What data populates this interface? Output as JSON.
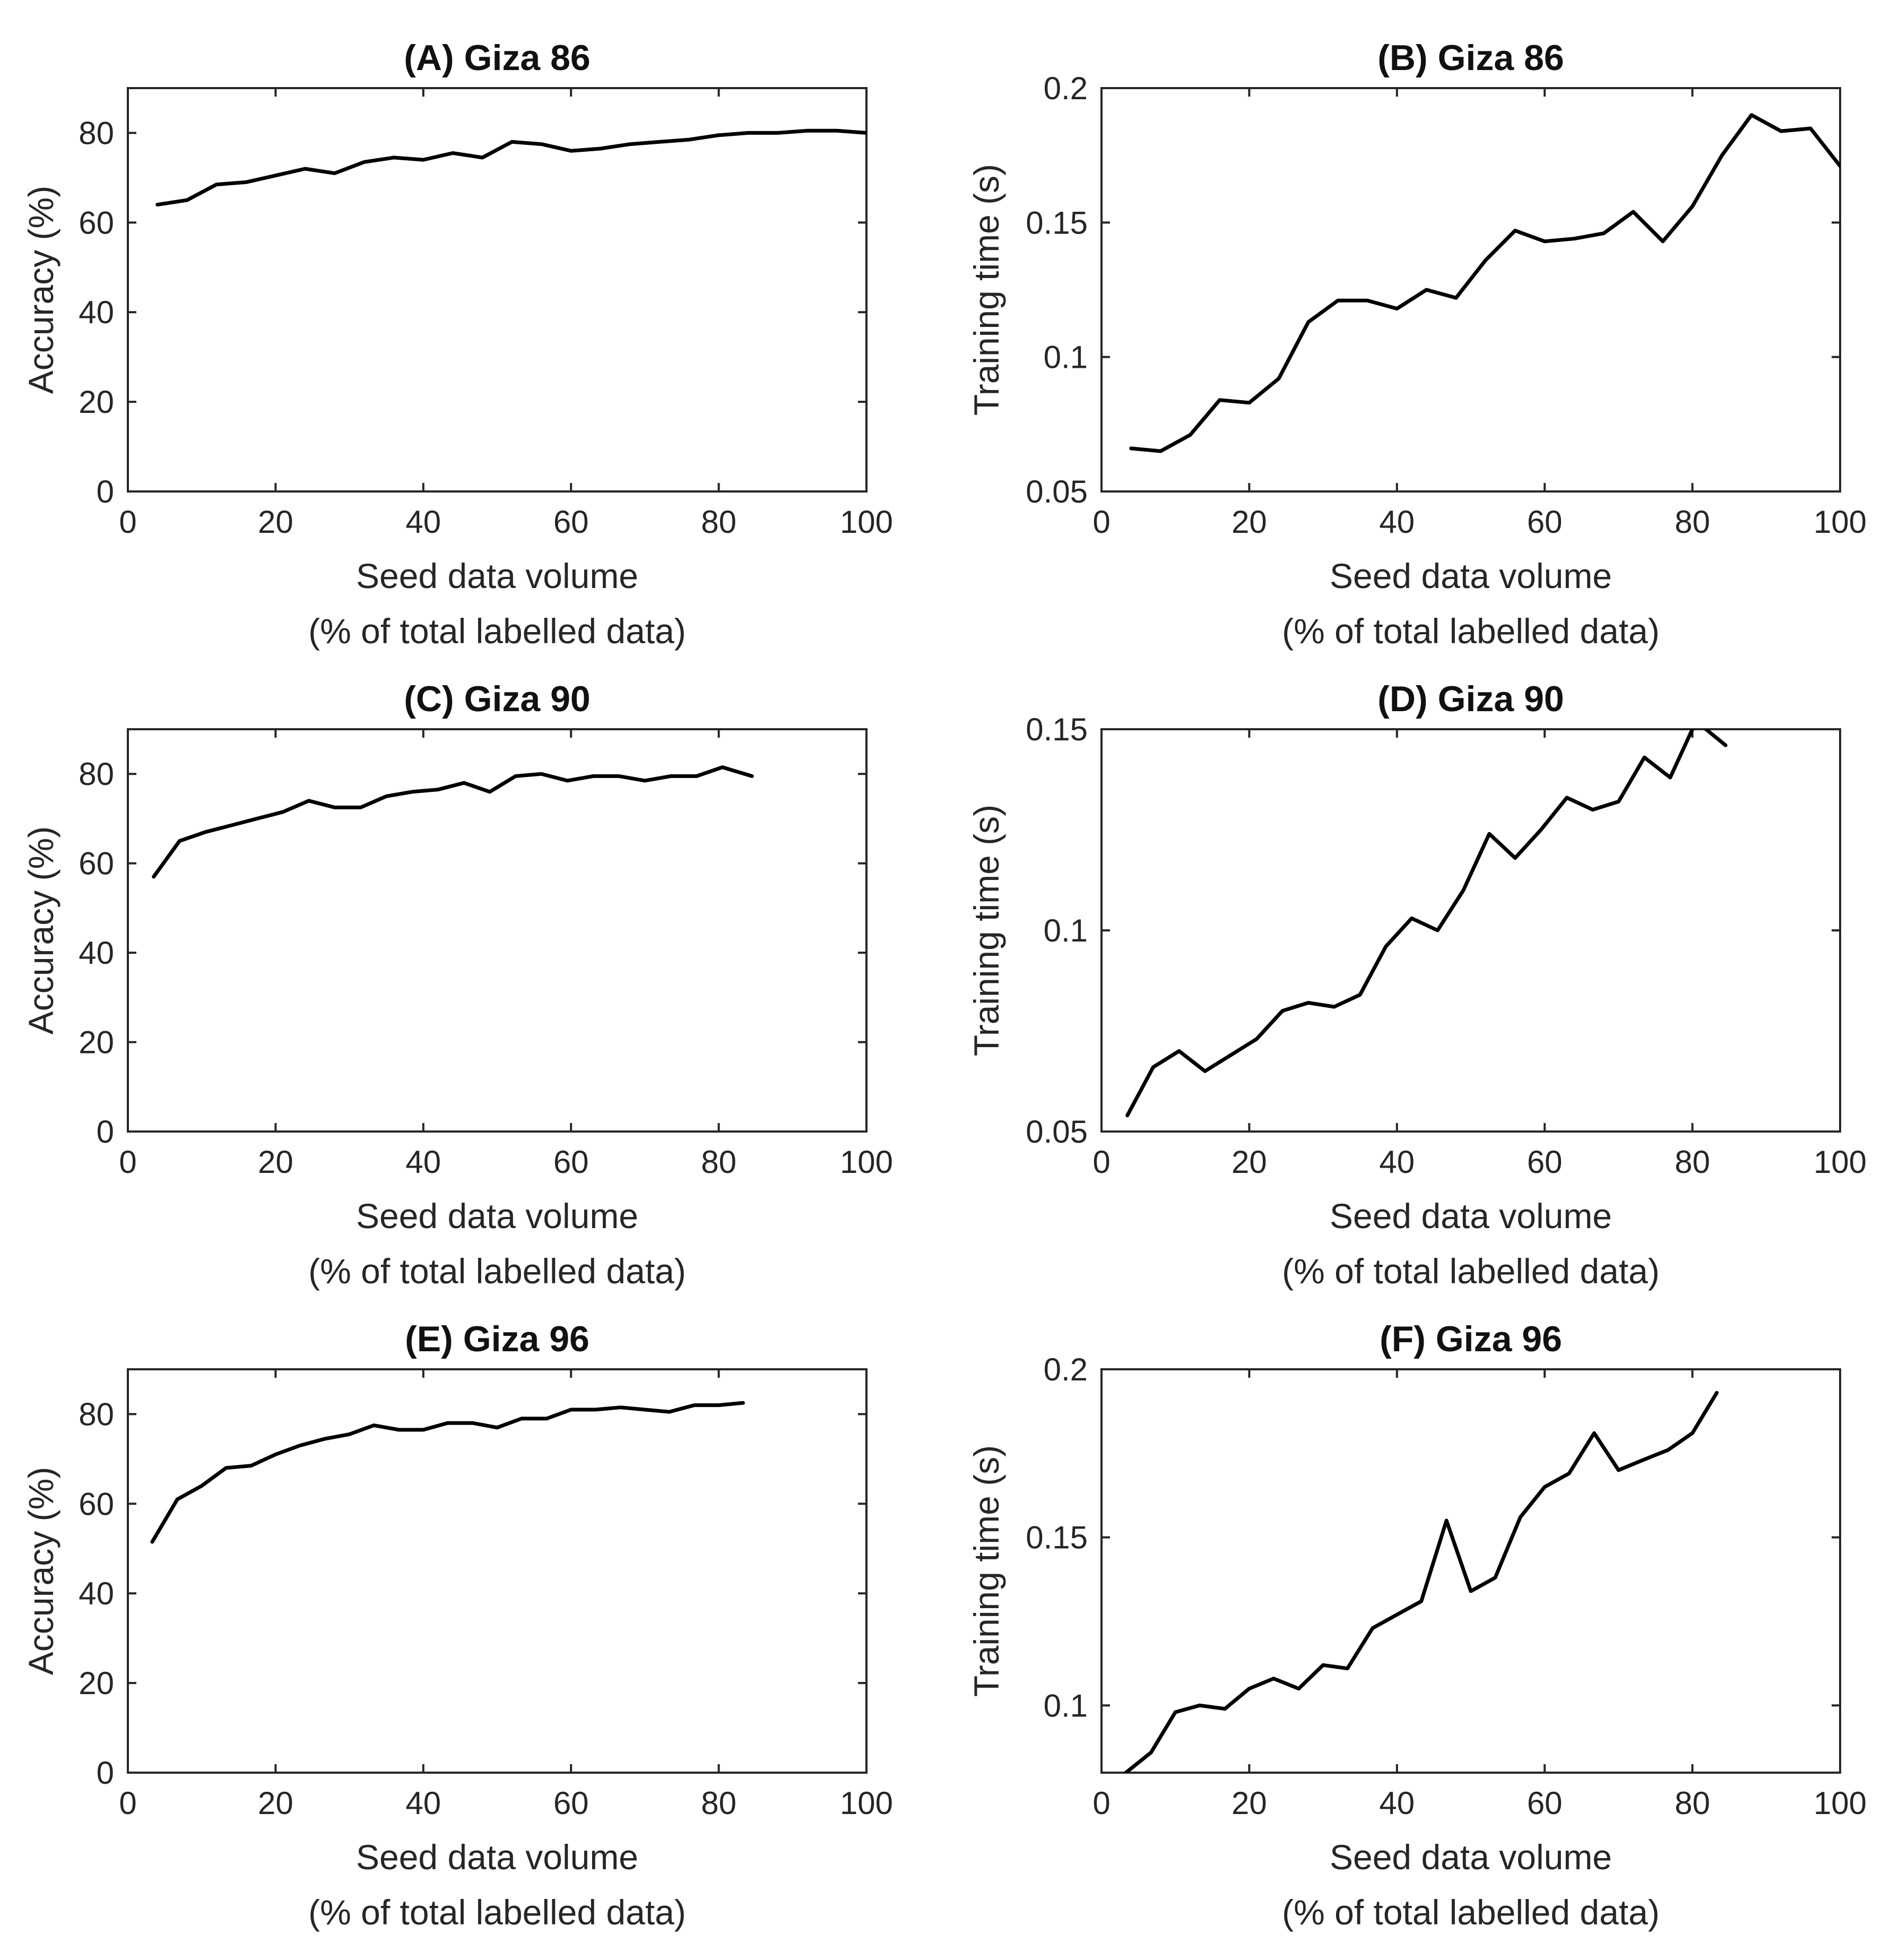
{
  "chart_data": [
    {
      "id": "A",
      "type": "line",
      "title": "(A) Giza 86",
      "xlabel": [
        "Seed data volume",
        "(% of total labelled data)"
      ],
      "ylabel": "Accuracy (%)",
      "xlim": [
        0,
        100
      ],
      "ylim": [
        0,
        90
      ],
      "xticks": [
        0,
        20,
        40,
        60,
        80,
        100
      ],
      "yticks": [
        0,
        20,
        40,
        60,
        80
      ],
      "ytick_labels": [
        "0",
        "20",
        "40",
        "60",
        "80"
      ],
      "grid": false,
      "x": [
        4,
        8,
        12,
        16,
        20,
        24,
        28,
        32,
        36,
        40,
        44,
        48,
        52,
        56,
        60,
        64,
        68,
        72,
        76,
        80,
        84,
        88,
        92,
        96,
        100
      ],
      "y": [
        64,
        65,
        68.5,
        69,
        70.5,
        72,
        71,
        73.5,
        74.5,
        74,
        75.5,
        74.5,
        78,
        77.5,
        76,
        76.5,
        77.5,
        78,
        78.5,
        79.5,
        80,
        80,
        80.5,
        80.5,
        80
      ]
    },
    {
      "id": "B",
      "type": "line",
      "title": "(B) Giza 86",
      "xlabel": [
        "Seed data volume",
        "(% of total labelled data)"
      ],
      "ylabel": "Training time (s)",
      "xlim": [
        0,
        100
      ],
      "ylim": [
        0.05,
        0.2
      ],
      "xticks": [
        0,
        20,
        40,
        60,
        80,
        100
      ],
      "yticks": [
        0.05,
        0.1,
        0.15,
        0.2
      ],
      "ytick_labels": [
        "0.05",
        "0.1",
        "0.15",
        "0.2"
      ],
      "grid": false,
      "x": [
        4,
        8,
        12,
        16,
        20,
        24,
        28,
        32,
        36,
        40,
        44,
        48,
        52,
        56,
        60,
        64,
        68,
        72,
        76,
        80,
        84,
        88,
        92,
        96,
        100
      ],
      "y": [
        0.066,
        0.065,
        0.071,
        0.084,
        0.083,
        0.092,
        0.113,
        0.121,
        0.121,
        0.118,
        0.125,
        0.122,
        0.136,
        0.147,
        0.143,
        0.144,
        0.146,
        0.154,
        0.143,
        0.156,
        0.175,
        0.19,
        0.184,
        0.185,
        0.171
      ]
    },
    {
      "id": "C",
      "type": "line",
      "title": "(C) Giza 90",
      "xlabel": [
        "Seed data volume",
        "(% of total labelled data)"
      ],
      "ylabel": "Accuracy (%)",
      "xlim": [
        0,
        100
      ],
      "ylim": [
        0,
        90
      ],
      "xticks": [
        0,
        20,
        40,
        60,
        80,
        100
      ],
      "yticks": [
        0,
        20,
        40,
        60,
        80
      ],
      "ytick_labels": [
        "0",
        "20",
        "40",
        "60",
        "80"
      ],
      "grid": false,
      "x": [
        3.5,
        7,
        10.5,
        14,
        17.5,
        21,
        24.5,
        28,
        31.5,
        35,
        38.5,
        42,
        45.5,
        49,
        52.5,
        56,
        59.5,
        63,
        66.5,
        70,
        73.5,
        77,
        80.5,
        84.5
      ],
      "y": [
        57,
        65,
        67,
        68.5,
        70,
        71.5,
        74,
        72.5,
        72.5,
        75,
        76,
        76.5,
        78,
        76,
        79.5,
        80,
        78.5,
        79.5,
        79.5,
        78.5,
        79.5,
        79.5,
        81.5,
        79.5
      ]
    },
    {
      "id": "D",
      "type": "line",
      "title": "(D) Giza 90",
      "xlabel": [
        "Seed data volume",
        "(% of total labelled data)"
      ],
      "ylabel": "Training time (s)",
      "xlim": [
        0,
        100
      ],
      "ylim": [
        0.05,
        0.15
      ],
      "xticks": [
        0,
        20,
        40,
        60,
        80,
        100
      ],
      "yticks": [
        0.05,
        0.1,
        0.15
      ],
      "ytick_labels": [
        "0.05",
        "0.1",
        "0.15"
      ],
      "grid": false,
      "x": [
        3.5,
        7,
        10.5,
        14,
        17.5,
        21,
        24.5,
        28,
        31.5,
        35,
        38.5,
        42,
        45.5,
        49,
        52.5,
        56,
        59.5,
        63,
        66.5,
        70,
        73.5,
        77,
        80.5,
        84.5
      ],
      "y": [
        0.054,
        0.066,
        0.07,
        0.065,
        0.069,
        0.073,
        0.08,
        0.082,
        0.081,
        0.084,
        0.096,
        0.103,
        0.1,
        0.11,
        0.124,
        0.118,
        0.125,
        0.133,
        0.13,
        0.132,
        0.143,
        0.138,
        0.152,
        0.146
      ]
    },
    {
      "id": "E",
      "type": "line",
      "title": "(E) Giza 96",
      "xlabel": [
        "Seed data volume",
        "(% of total labelled data)"
      ],
      "ylabel": "Accuracy (%)",
      "xlim": [
        0,
        100
      ],
      "ylim": [
        0,
        90
      ],
      "xticks": [
        0,
        20,
        40,
        60,
        80,
        100
      ],
      "yticks": [
        0,
        20,
        40,
        60,
        80
      ],
      "ytick_labels": [
        "0",
        "20",
        "40",
        "60",
        "80"
      ],
      "grid": false,
      "x": [
        3.3,
        6.7,
        10,
        13.3,
        16.7,
        20,
        23.3,
        26.7,
        30,
        33.3,
        36.7,
        40,
        43.3,
        46.7,
        50,
        53.3,
        56.7,
        60,
        63.3,
        66.7,
        70,
        73.3,
        76.7,
        80,
        83.3
      ],
      "y": [
        51.5,
        61,
        64,
        68,
        68.5,
        71,
        73,
        74.5,
        75.5,
        77.5,
        76.5,
        76.5,
        78,
        78,
        77,
        79,
        79,
        81,
        81,
        81.5,
        81,
        80.5,
        82,
        82,
        82.5
      ]
    },
    {
      "id": "F",
      "type": "line",
      "title": "(F) Giza 96",
      "xlabel": [
        "Seed data volume",
        "(% of total labelled data)"
      ],
      "ylabel": "Training time (s)",
      "xlim": [
        0,
        100
      ],
      "ylim": [
        0.08,
        0.2
      ],
      "xticks": [
        0,
        20,
        40,
        60,
        80,
        100
      ],
      "yticks": [
        0.1,
        0.15,
        0.2
      ],
      "ytick_labels": [
        "0.1",
        "0.15",
        "0.2"
      ],
      "grid": false,
      "x": [
        3.3,
        6.7,
        10,
        13.3,
        16.7,
        20,
        23.3,
        26.7,
        30,
        33.3,
        36.7,
        40,
        43.3,
        46.7,
        50,
        53.3,
        56.7,
        60,
        63.3,
        66.7,
        70,
        73.3,
        76.7,
        80,
        83.3
      ],
      "y": [
        0.08,
        0.086,
        0.098,
        0.1,
        0.099,
        0.105,
        0.108,
        0.105,
        0.112,
        0.111,
        0.123,
        0.127,
        0.131,
        0.155,
        0.134,
        0.138,
        0.156,
        0.165,
        0.169,
        0.181,
        0.17,
        0.173,
        0.176,
        0.181,
        0.193
      ]
    }
  ]
}
